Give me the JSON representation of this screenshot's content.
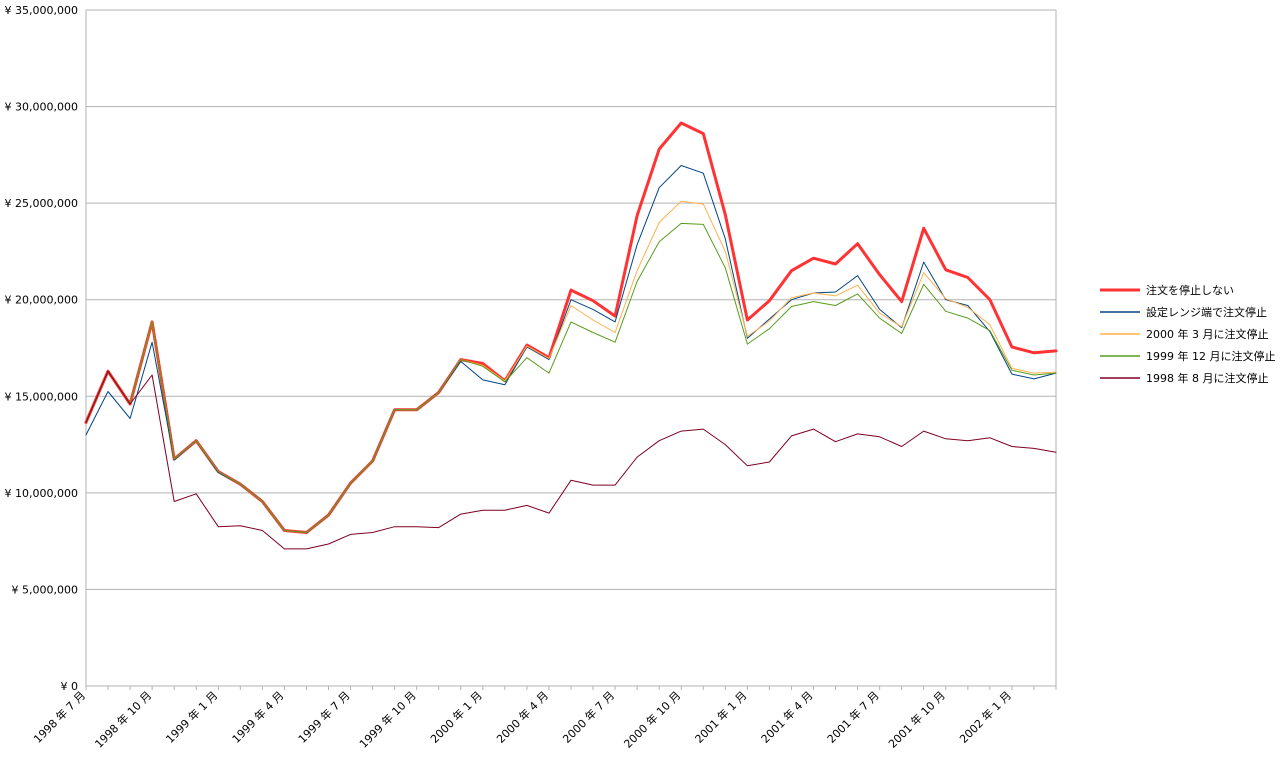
{
  "chart_data": {
    "type": "line",
    "title": "",
    "xlabel": "",
    "ylabel": "",
    "ylim": [
      0,
      35000000
    ],
    "y_ticks": [
      0,
      5000000,
      10000000,
      15000000,
      20000000,
      25000000,
      30000000,
      35000000
    ],
    "y_tick_labels": [
      "¥ 0",
      "¥ 5,000,000",
      "¥ 10,000,000",
      "¥ 15,000,000",
      "¥ 20,000,000",
      "¥ 25,000,000",
      "¥ 30,000,000",
      "¥ 35,000,000"
    ],
    "x": [
      "1998-07",
      "1998-08",
      "1998-09",
      "1998-10",
      "1998-11",
      "1998-12",
      "1999-01",
      "1999-02",
      "1999-03",
      "1999-04",
      "1999-05",
      "1999-06",
      "1999-07",
      "1999-08",
      "1999-09",
      "1999-10",
      "1999-11",
      "1999-12",
      "2000-01",
      "2000-02",
      "2000-03",
      "2000-04",
      "2000-05",
      "2000-06",
      "2000-07",
      "2000-08",
      "2000-09",
      "2000-10",
      "2000-11",
      "2000-12",
      "2001-01",
      "2001-02",
      "2001-03",
      "2001-04",
      "2001-05",
      "2001-06",
      "2001-07",
      "2001-08",
      "2001-09",
      "2001-10",
      "2001-11",
      "2001-12",
      "2002-01",
      "2002-02",
      "2002-03"
    ],
    "x_tick_labels": [
      "1998 年 7 月",
      "1998 年 10 月",
      "1999 年 1 月",
      "1999 年 4 月",
      "1999 年 7 月",
      "1999 年 10 月",
      "2000 年 1 月",
      "2000 年 4 月",
      "2000 年 7 月",
      "2000 年 10 月",
      "2001 年 1 月",
      "2001 年 4 月",
      "2001 年 7 月",
      "2001 年 10 月",
      "2002 年 1 月"
    ],
    "x_tick_label_indices": [
      0,
      3,
      6,
      9,
      12,
      15,
      18,
      21,
      24,
      27,
      30,
      33,
      36,
      39,
      42
    ],
    "grid": true,
    "legend_position": "right",
    "series": [
      {
        "name": "注文を停止しない",
        "color": "#ff3333",
        "stroke_width": 3,
        "values": [
          13650000,
          16300000,
          14600000,
          18850000,
          11750000,
          12700000,
          11100000,
          10450000,
          9550000,
          8050000,
          7950000,
          8850000,
          10500000,
          11650000,
          14300000,
          14300000,
          15200000,
          16900000,
          16700000,
          15800000,
          17650000,
          17000000,
          20500000,
          19950000,
          19150000,
          24350000,
          27800000,
          29150000,
          28600000,
          24400000,
          18950000,
          19950000,
          21500000,
          22150000,
          21850000,
          22900000,
          21300000,
          19900000,
          23700000,
          21550000,
          21150000,
          20000000,
          17550000,
          17250000,
          17350000
        ]
      },
      {
        "name": "設定レンジ端で注文停止",
        "color": "#004586",
        "stroke_width": 1,
        "values": [
          13000000,
          15250000,
          13850000,
          17800000,
          11700000,
          12700000,
          11050000,
          10450000,
          9550000,
          8050000,
          7950000,
          8850000,
          10500000,
          11650000,
          14300000,
          14300000,
          15200000,
          16800000,
          15850000,
          15600000,
          17550000,
          16900000,
          20000000,
          19500000,
          18850000,
          22850000,
          25800000,
          26950000,
          26550000,
          23150000,
          18000000,
          19000000,
          20000000,
          20350000,
          20400000,
          21250000,
          19500000,
          18550000,
          21950000,
          20000000,
          19700000,
          18350000,
          16150000,
          15900000,
          16200000
        ]
      },
      {
        "name": "2000 年 3 月に注文停止",
        "color": "#ffb04a",
        "stroke_width": 1,
        "values": [
          13650000,
          16300000,
          14600000,
          18850000,
          11750000,
          12700000,
          11100000,
          10450000,
          9550000,
          8050000,
          7950000,
          8850000,
          10500000,
          11650000,
          14300000,
          14300000,
          15200000,
          16900000,
          16600000,
          15800000,
          17600000,
          16950000,
          19700000,
          18950000,
          18300000,
          21500000,
          24000000,
          25100000,
          24950000,
          22500000,
          18100000,
          18900000,
          20100000,
          20350000,
          20200000,
          20750000,
          19300000,
          18600000,
          21400000,
          20050000,
          19600000,
          18700000,
          16450000,
          16200000,
          16250000
        ]
      },
      {
        "name": "1999 年 12 月に注文停止",
        "color": "#579d1c",
        "stroke_width": 1,
        "values": [
          13650000,
          16300000,
          14600000,
          18850000,
          11750000,
          12700000,
          11100000,
          10450000,
          9550000,
          8050000,
          7950000,
          8850000,
          10500000,
          11650000,
          14300000,
          14300000,
          15200000,
          16900000,
          16550000,
          15750000,
          17000000,
          16200000,
          18850000,
          18300000,
          17800000,
          20950000,
          23000000,
          23950000,
          23900000,
          21650000,
          17700000,
          18500000,
          19650000,
          19900000,
          19700000,
          20300000,
          19050000,
          18250000,
          20800000,
          19400000,
          19050000,
          18400000,
          16350000,
          16100000,
          16200000
        ]
      },
      {
        "name": "1998 年 8 月に注文停止",
        "color": "#7e0021",
        "stroke_width": 1,
        "values": [
          13650000,
          16300000,
          14600000,
          16100000,
          9550000,
          9950000,
          8250000,
          8300000,
          8050000,
          7100000,
          7100000,
          7350000,
          7850000,
          7950000,
          8250000,
          8250000,
          8200000,
          8900000,
          9100000,
          9100000,
          9350000,
          8950000,
          10650000,
          10400000,
          10400000,
          11850000,
          12700000,
          13200000,
          13300000,
          12500000,
          11400000,
          11600000,
          12950000,
          13300000,
          12650000,
          13050000,
          12900000,
          12400000,
          13200000,
          12800000,
          12700000,
          12850000,
          12400000,
          12300000,
          12100000
        ]
      }
    ]
  }
}
